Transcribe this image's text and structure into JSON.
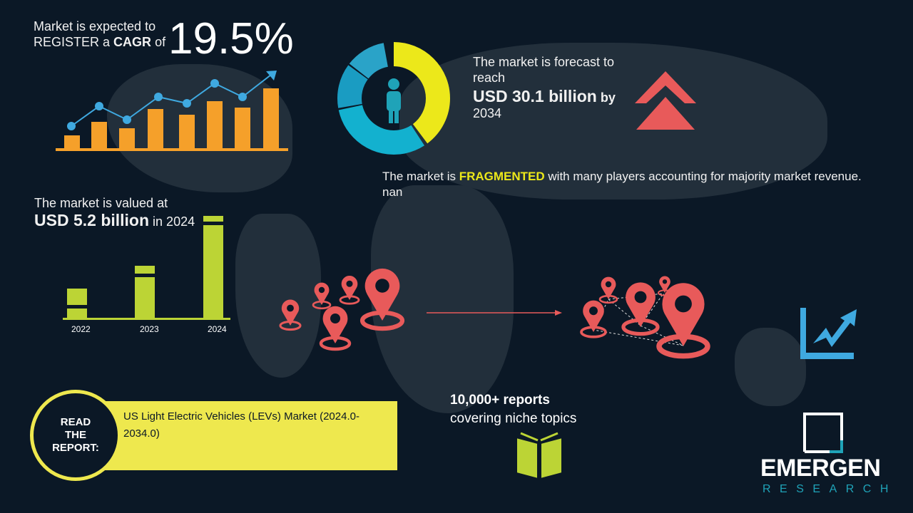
{
  "cagr": {
    "line1": "Market is expected to",
    "line2_prefix": "REGISTER a",
    "line2_bold": "CAGR",
    "line2_suffix": "of",
    "value": "19.5%"
  },
  "forecast": {
    "line1": "The market is forecast to",
    "line2": "reach",
    "value": "USD 30.1 billion",
    "by": "by",
    "year": "2034"
  },
  "fragmented": {
    "prefix": "The market is",
    "highlight": "FRAGMENTED",
    "suffix": "with many players accounting for majority market revenue. nan"
  },
  "valued": {
    "line1": "The market is valued at",
    "value": "USD 5.2 billion",
    "suffix": "in 2024"
  },
  "years": [
    "2022",
    "2023",
    "2024"
  ],
  "report": {
    "label_lines": [
      "READ",
      "THE",
      "REPORT:"
    ],
    "title": "US Light Electric Vehicles (LEVs) Market (2024.0-2034.0)"
  },
  "reports_count": {
    "line1": "10,000+ reports",
    "line2": "covering niche topics"
  },
  "logo": {
    "name": "EMERGEN",
    "sub": "RESEARCH"
  },
  "colors": {
    "background": "#0b1826",
    "orange": "#f5a02a",
    "blue": "#3fa9e0",
    "yellow": "#ece81a",
    "lime": "#bcd435",
    "red": "#e85a5a",
    "teal": "#1fa3b8"
  },
  "icons": [
    "person-icon",
    "double-chevron-up-icon",
    "map-pin-icon",
    "growth-chart-icon",
    "book-icon"
  ]
}
